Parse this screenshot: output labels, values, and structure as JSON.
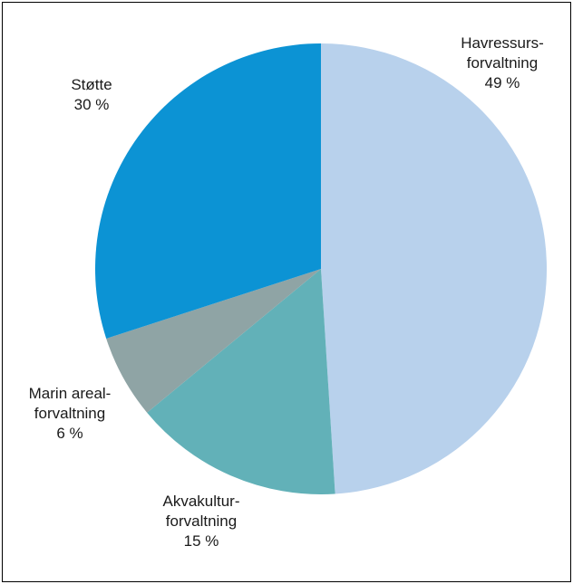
{
  "chart_data": {
    "type": "pie",
    "title": "",
    "start_angle_deg": 0,
    "direction": "clockwise",
    "slices": [
      {
        "label_lines": [
          "Havressurs-",
          "forvaltning",
          "49 %"
        ],
        "value": 49,
        "color": "#b8d1ec"
      },
      {
        "label_lines": [
          "Akvakultur-",
          "forvaltning",
          "15 %"
        ],
        "value": 15,
        "color": "#62b1b8"
      },
      {
        "label_lines": [
          "Marin areal-",
          "forvaltning",
          "6 %"
        ],
        "value": 6,
        "color": "#8fa4a5"
      },
      {
        "label_lines": [
          "Støtte",
          "30 %"
        ],
        "value": 30,
        "color": "#0c93d4"
      }
    ]
  }
}
